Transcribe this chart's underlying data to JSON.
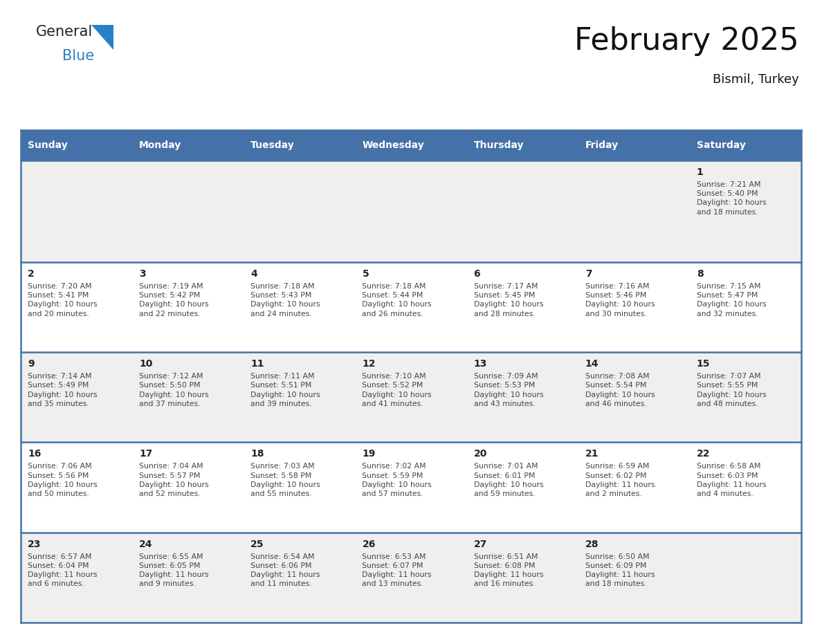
{
  "title": "February 2025",
  "subtitle": "Bismil, Turkey",
  "header_color": "#4472A8",
  "header_text_color": "#FFFFFF",
  "days_of_week": [
    "Sunday",
    "Monday",
    "Tuesday",
    "Wednesday",
    "Thursday",
    "Friday",
    "Saturday"
  ],
  "row0_bg": "#EFEFEF",
  "row1_bg": "#FFFFFF",
  "row2_bg": "#EFEFEF",
  "row3_bg": "#FFFFFF",
  "row4_bg": "#EFEFEF",
  "border_color": "#4472A8",
  "text_color": "#444444",
  "day_num_color": "#222222",
  "calendar_data": [
    [
      null,
      null,
      null,
      null,
      null,
      null,
      {
        "day": 1,
        "sunrise": "7:21 AM",
        "sunset": "5:40 PM",
        "daylight": "10 hours\nand 18 minutes."
      }
    ],
    [
      {
        "day": 2,
        "sunrise": "7:20 AM",
        "sunset": "5:41 PM",
        "daylight": "10 hours\nand 20 minutes."
      },
      {
        "day": 3,
        "sunrise": "7:19 AM",
        "sunset": "5:42 PM",
        "daylight": "10 hours\nand 22 minutes."
      },
      {
        "day": 4,
        "sunrise": "7:18 AM",
        "sunset": "5:43 PM",
        "daylight": "10 hours\nand 24 minutes."
      },
      {
        "day": 5,
        "sunrise": "7:18 AM",
        "sunset": "5:44 PM",
        "daylight": "10 hours\nand 26 minutes."
      },
      {
        "day": 6,
        "sunrise": "7:17 AM",
        "sunset": "5:45 PM",
        "daylight": "10 hours\nand 28 minutes."
      },
      {
        "day": 7,
        "sunrise": "7:16 AM",
        "sunset": "5:46 PM",
        "daylight": "10 hours\nand 30 minutes."
      },
      {
        "day": 8,
        "sunrise": "7:15 AM",
        "sunset": "5:47 PM",
        "daylight": "10 hours\nand 32 minutes."
      }
    ],
    [
      {
        "day": 9,
        "sunrise": "7:14 AM",
        "sunset": "5:49 PM",
        "daylight": "10 hours\nand 35 minutes."
      },
      {
        "day": 10,
        "sunrise": "7:12 AM",
        "sunset": "5:50 PM",
        "daylight": "10 hours\nand 37 minutes."
      },
      {
        "day": 11,
        "sunrise": "7:11 AM",
        "sunset": "5:51 PM",
        "daylight": "10 hours\nand 39 minutes."
      },
      {
        "day": 12,
        "sunrise": "7:10 AM",
        "sunset": "5:52 PM",
        "daylight": "10 hours\nand 41 minutes."
      },
      {
        "day": 13,
        "sunrise": "7:09 AM",
        "sunset": "5:53 PM",
        "daylight": "10 hours\nand 43 minutes."
      },
      {
        "day": 14,
        "sunrise": "7:08 AM",
        "sunset": "5:54 PM",
        "daylight": "10 hours\nand 46 minutes."
      },
      {
        "day": 15,
        "sunrise": "7:07 AM",
        "sunset": "5:55 PM",
        "daylight": "10 hours\nand 48 minutes."
      }
    ],
    [
      {
        "day": 16,
        "sunrise": "7:06 AM",
        "sunset": "5:56 PM",
        "daylight": "10 hours\nand 50 minutes."
      },
      {
        "day": 17,
        "sunrise": "7:04 AM",
        "sunset": "5:57 PM",
        "daylight": "10 hours\nand 52 minutes."
      },
      {
        "day": 18,
        "sunrise": "7:03 AM",
        "sunset": "5:58 PM",
        "daylight": "10 hours\nand 55 minutes."
      },
      {
        "day": 19,
        "sunrise": "7:02 AM",
        "sunset": "5:59 PM",
        "daylight": "10 hours\nand 57 minutes."
      },
      {
        "day": 20,
        "sunrise": "7:01 AM",
        "sunset": "6:01 PM",
        "daylight": "10 hours\nand 59 minutes."
      },
      {
        "day": 21,
        "sunrise": "6:59 AM",
        "sunset": "6:02 PM",
        "daylight": "11 hours\nand 2 minutes."
      },
      {
        "day": 22,
        "sunrise": "6:58 AM",
        "sunset": "6:03 PM",
        "daylight": "11 hours\nand 4 minutes."
      }
    ],
    [
      {
        "day": 23,
        "sunrise": "6:57 AM",
        "sunset": "6:04 PM",
        "daylight": "11 hours\nand 6 minutes."
      },
      {
        "day": 24,
        "sunrise": "6:55 AM",
        "sunset": "6:05 PM",
        "daylight": "11 hours\nand 9 minutes."
      },
      {
        "day": 25,
        "sunrise": "6:54 AM",
        "sunset": "6:06 PM",
        "daylight": "11 hours\nand 11 minutes."
      },
      {
        "day": 26,
        "sunrise": "6:53 AM",
        "sunset": "6:07 PM",
        "daylight": "11 hours\nand 13 minutes."
      },
      {
        "day": 27,
        "sunrise": "6:51 AM",
        "sunset": "6:08 PM",
        "daylight": "11 hours\nand 16 minutes."
      },
      {
        "day": 28,
        "sunrise": "6:50 AM",
        "sunset": "6:09 PM",
        "daylight": "11 hours\nand 18 minutes."
      },
      null
    ]
  ],
  "logo_general_color": "#222222",
  "logo_blue_color": "#2980C8",
  "logo_triangle_color": "#2980C8"
}
